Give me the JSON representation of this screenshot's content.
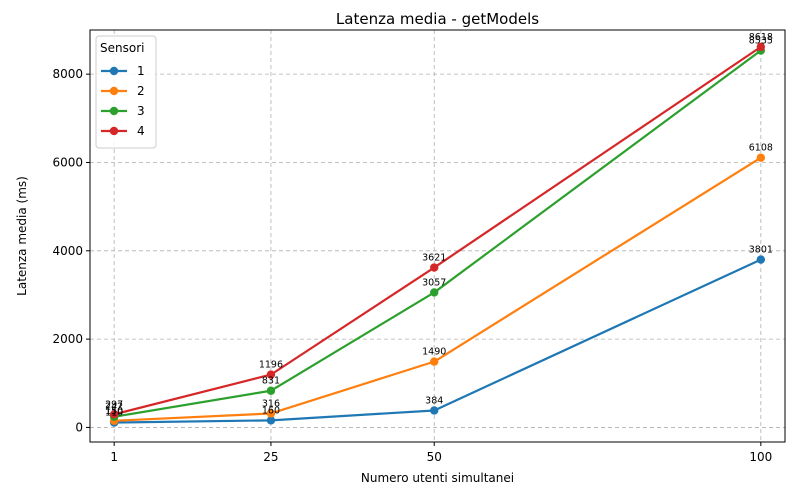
{
  "chart_data": {
    "type": "line",
    "title": "Latenza media - getModels",
    "xlabel": "Numero utenti simultanei",
    "ylabel": "Latenza media (ms)",
    "x": [
      1,
      25,
      50,
      100
    ],
    "xlim": [
      -2.7,
      103.7
    ],
    "ylim": [
      -330,
      9000
    ],
    "yticks": [
      0,
      2000,
      4000,
      6000,
      8000
    ],
    "grid": true,
    "legend": {
      "title": "Sensori",
      "placement": "top-left"
    },
    "series": [
      {
        "name": "1",
        "color": "#1f77b4",
        "values": [
          110,
          160,
          384,
          3801
        ]
      },
      {
        "name": "2",
        "color": "#ff7f0e",
        "values": [
          150,
          316,
          1490,
          6108
        ]
      },
      {
        "name": "3",
        "color": "#2ca02c",
        "values": [
          242,
          831,
          3057,
          8535
        ]
      },
      {
        "name": "4",
        "color": "#d62728",
        "values": [
          297,
          1196,
          3621,
          8618
        ]
      }
    ]
  }
}
